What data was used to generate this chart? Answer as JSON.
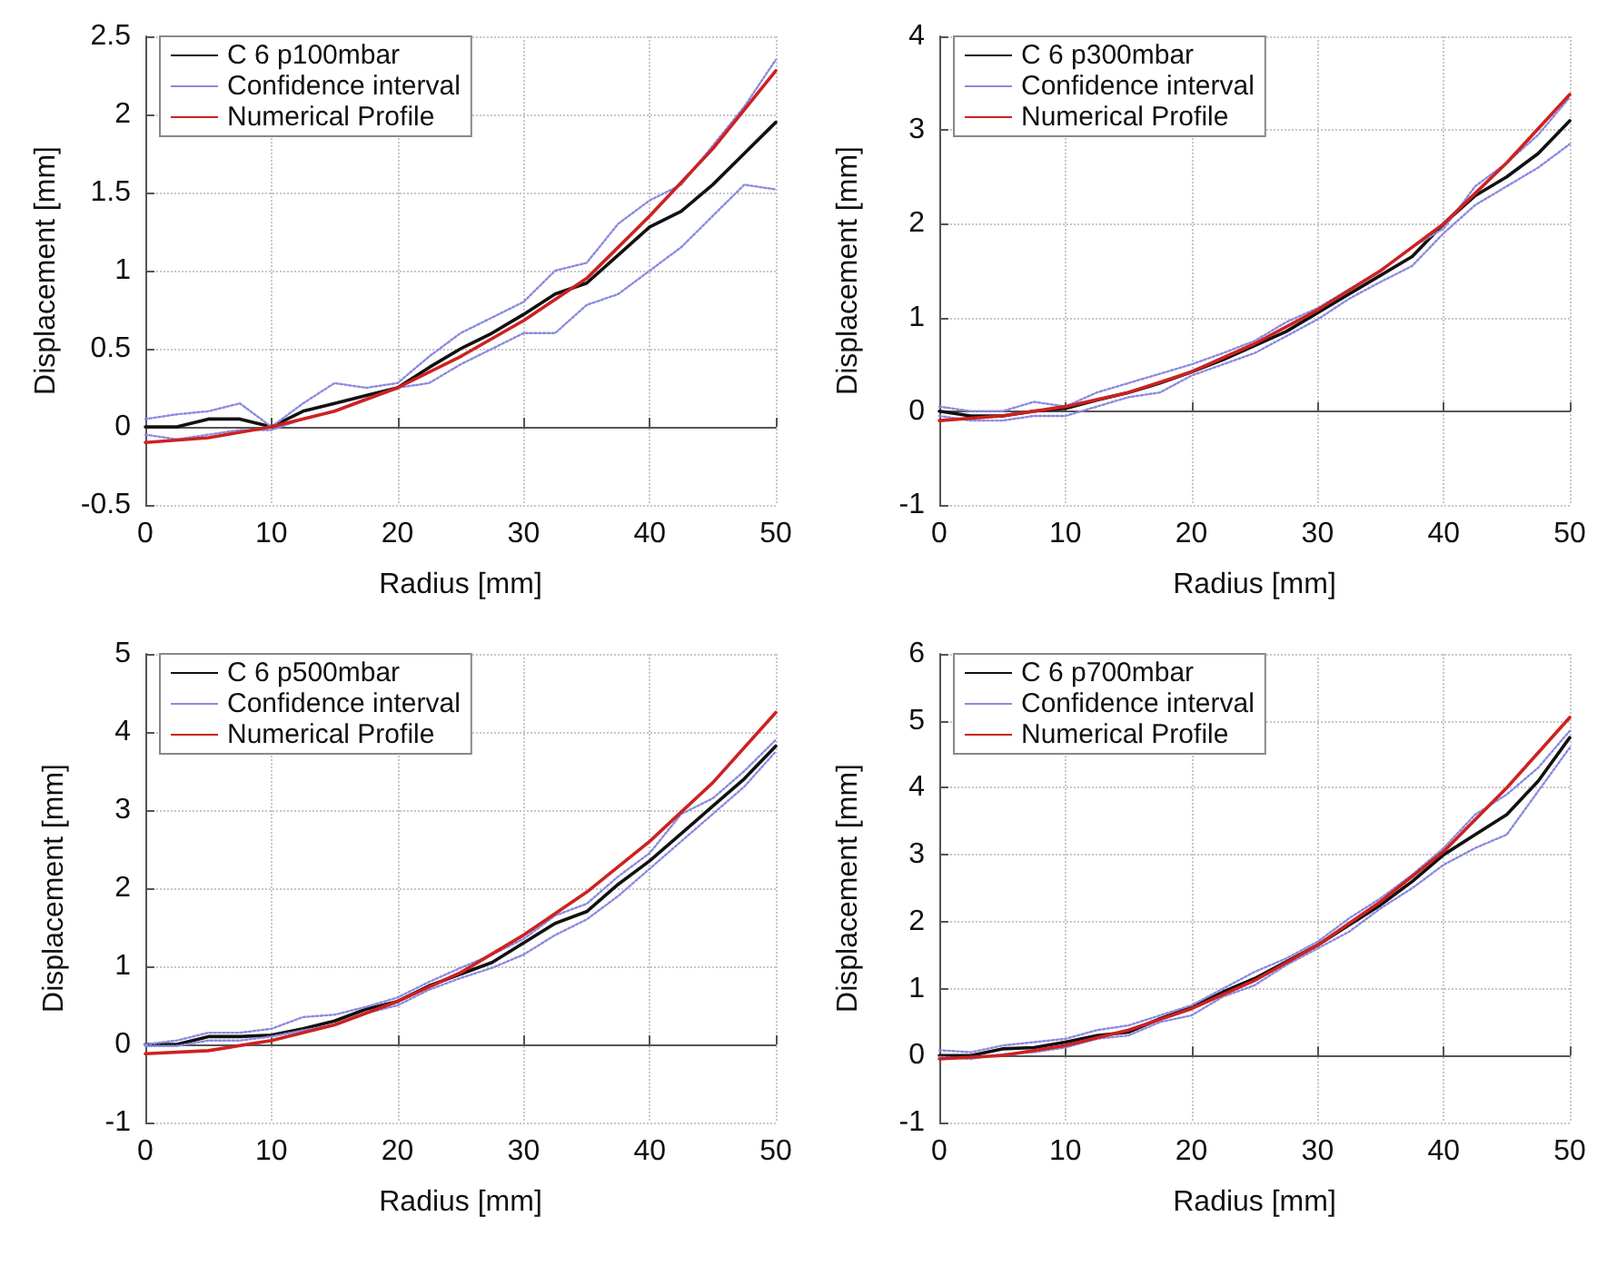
{
  "chart_data": [
    {
      "type": "line",
      "xlabel": "Radius [mm]",
      "ylabel": "Displacement [mm]",
      "xlim": [
        0,
        50
      ],
      "xticks": [
        0,
        10,
        20,
        30,
        40,
        50
      ],
      "ylim": [
        -0.5,
        2.5
      ],
      "yticks": [
        -0.5,
        0,
        0.5,
        1,
        1.5,
        2,
        2.5
      ],
      "grid": true,
      "legend": "top left",
      "marker": "none",
      "x": [
        0,
        2.5,
        5,
        7.5,
        10,
        12.5,
        15,
        17.5,
        20,
        22.5,
        25,
        27.5,
        30,
        32.5,
        35,
        37.5,
        40,
        42.5,
        45,
        47.5,
        50
      ],
      "series": [
        {
          "name": "C 6 p100mbar",
          "color": "#111111",
          "line_style": "solid",
          "values": [
            0.0,
            0.0,
            0.05,
            0.05,
            0.0,
            0.1,
            0.15,
            0.2,
            0.25,
            0.38,
            0.5,
            0.6,
            0.72,
            0.85,
            0.92,
            1.1,
            1.28,
            1.38,
            1.55,
            1.75,
            1.95
          ]
        },
        {
          "name": "Confidence interval",
          "color": "#8a8ae0",
          "line_style": "dotted",
          "values": [
            0.05,
            0.08,
            0.1,
            0.15,
            0.0,
            0.15,
            0.28,
            0.25,
            0.28,
            0.45,
            0.6,
            0.7,
            0.8,
            1.0,
            1.05,
            1.3,
            1.45,
            1.55,
            1.8,
            2.05,
            2.35
          ]
        },
        {
          "color": "#8a8ae0",
          "line_style": "dotted",
          "values": [
            -0.05,
            -0.08,
            -0.05,
            -0.02,
            -0.02,
            0.05,
            0.1,
            0.18,
            0.25,
            0.28,
            0.4,
            0.5,
            0.6,
            0.6,
            0.78,
            0.85,
            1.0,
            1.15,
            1.35,
            1.55,
            1.52
          ]
        },
        {
          "name": "Numerical Profile",
          "color": "#cc2222",
          "line_style": "solid",
          "x": [
            0,
            5,
            10,
            15,
            20,
            25,
            30,
            35,
            40,
            45,
            50
          ],
          "values": [
            -0.1,
            -0.07,
            0.0,
            0.1,
            0.25,
            0.45,
            0.68,
            0.95,
            1.35,
            1.78,
            2.28
          ]
        }
      ]
    },
    {
      "type": "line",
      "xlabel": "Radius [mm]",
      "ylabel": "Displacement [mm]",
      "xlim": [
        0,
        50
      ],
      "xticks": [
        0,
        10,
        20,
        30,
        40,
        50
      ],
      "ylim": [
        -1,
        4
      ],
      "yticks": [
        -1,
        0,
        1,
        2,
        3,
        4
      ],
      "grid": true,
      "legend": "top left",
      "marker": "none",
      "x": [
        0,
        2.5,
        5,
        7.5,
        10,
        12.5,
        15,
        17.5,
        20,
        22.5,
        25,
        27.5,
        30,
        32.5,
        35,
        37.5,
        40,
        42.5,
        45,
        47.5,
        50
      ],
      "series": [
        {
          "name": "C 6 p300mbar",
          "color": "#111111",
          "line_style": "solid",
          "values": [
            0.0,
            -0.05,
            -0.05,
            0.0,
            0.03,
            0.12,
            0.2,
            0.3,
            0.42,
            0.55,
            0.7,
            0.85,
            1.05,
            1.25,
            1.45,
            1.65,
            2.0,
            2.3,
            2.5,
            2.75,
            3.1
          ]
        },
        {
          "name": "Confidence interval",
          "color": "#8a8ae0",
          "line_style": "dotted",
          "values": [
            0.05,
            0.0,
            0.0,
            0.1,
            0.05,
            0.2,
            0.3,
            0.4,
            0.5,
            0.62,
            0.75,
            0.95,
            1.1,
            1.3,
            1.5,
            1.75,
            1.95,
            2.4,
            2.65,
            2.95,
            3.35
          ]
        },
        {
          "color": "#8a8ae0",
          "line_style": "dotted",
          "values": [
            -0.05,
            -0.1,
            -0.1,
            -0.05,
            -0.05,
            0.05,
            0.15,
            0.2,
            0.38,
            0.5,
            0.62,
            0.8,
            0.98,
            1.2,
            1.38,
            1.55,
            1.9,
            2.2,
            2.4,
            2.6,
            2.85
          ]
        },
        {
          "name": "Numerical Profile",
          "color": "#cc2222",
          "line_style": "solid",
          "x": [
            0,
            5,
            10,
            15,
            20,
            25,
            30,
            35,
            40,
            45,
            50
          ],
          "values": [
            -0.1,
            -0.05,
            0.05,
            0.2,
            0.42,
            0.72,
            1.08,
            1.5,
            2.0,
            2.65,
            3.38
          ]
        }
      ]
    },
    {
      "type": "line",
      "xlabel": "Radius [mm]",
      "ylabel": "Displacement [mm]",
      "xlim": [
        0,
        50
      ],
      "xticks": [
        0,
        10,
        20,
        30,
        40,
        50
      ],
      "ylim": [
        -1,
        5
      ],
      "yticks": [
        -1,
        0,
        1,
        2,
        3,
        4,
        5
      ],
      "grid": true,
      "legend": "top left",
      "marker": "none",
      "x": [
        0,
        2.5,
        5,
        7.5,
        10,
        12.5,
        15,
        17.5,
        20,
        22.5,
        25,
        27.5,
        30,
        32.5,
        35,
        37.5,
        40,
        42.5,
        45,
        47.5,
        50
      ],
      "series": [
        {
          "name": "C 6 p500mbar",
          "color": "#111111",
          "line_style": "solid",
          "values": [
            0.0,
            0.0,
            0.1,
            0.1,
            0.12,
            0.2,
            0.3,
            0.45,
            0.55,
            0.75,
            0.9,
            1.05,
            1.3,
            1.55,
            1.7,
            2.05,
            2.35,
            2.7,
            3.05,
            3.4,
            3.82
          ]
        },
        {
          "name": "Confidence interval",
          "color": "#8a8ae0",
          "line_style": "dotted",
          "values": [
            0.0,
            0.05,
            0.15,
            0.15,
            0.2,
            0.35,
            0.38,
            0.48,
            0.6,
            0.8,
            0.98,
            1.15,
            1.35,
            1.65,
            1.8,
            2.15,
            2.45,
            2.95,
            3.15,
            3.5,
            3.9
          ]
        },
        {
          "color": "#8a8ae0",
          "line_style": "dotted",
          "values": [
            -0.02,
            -0.02,
            0.05,
            0.05,
            0.1,
            0.18,
            0.25,
            0.4,
            0.5,
            0.7,
            0.85,
            0.98,
            1.15,
            1.4,
            1.6,
            1.9,
            2.25,
            2.6,
            2.95,
            3.3,
            3.75
          ]
        },
        {
          "name": "Numerical Profile",
          "color": "#cc2222",
          "line_style": "solid",
          "x": [
            0,
            5,
            10,
            15,
            20,
            25,
            30,
            35,
            40,
            45,
            50
          ],
          "values": [
            -0.12,
            -0.08,
            0.05,
            0.25,
            0.55,
            0.92,
            1.4,
            1.95,
            2.6,
            3.35,
            4.25
          ]
        }
      ]
    },
    {
      "type": "line",
      "xlabel": "Radius [mm]",
      "ylabel": "Displacement [mm]",
      "xlim": [
        0,
        50
      ],
      "xticks": [
        0,
        10,
        20,
        30,
        40,
        50
      ],
      "ylim": [
        -1,
        6
      ],
      "yticks": [
        -1,
        0,
        1,
        2,
        3,
        4,
        5,
        6
      ],
      "grid": true,
      "legend": "top left",
      "marker": "none",
      "x": [
        0,
        2.5,
        5,
        7.5,
        10,
        12.5,
        15,
        17.5,
        20,
        22.5,
        25,
        27.5,
        30,
        32.5,
        35,
        37.5,
        40,
        42.5,
        45,
        47.5,
        50
      ],
      "series": [
        {
          "name": "C 6 p700mbar",
          "color": "#111111",
          "line_style": "solid",
          "values": [
            0.0,
            0.0,
            0.1,
            0.12,
            0.2,
            0.3,
            0.35,
            0.55,
            0.72,
            0.95,
            1.15,
            1.4,
            1.65,
            1.95,
            2.25,
            2.6,
            3.0,
            3.3,
            3.6,
            4.1,
            4.75
          ]
        },
        {
          "name": "Confidence interval",
          "color": "#8a8ae0",
          "line_style": "dotted",
          "values": [
            0.08,
            0.05,
            0.15,
            0.2,
            0.25,
            0.38,
            0.45,
            0.6,
            0.75,
            1.0,
            1.25,
            1.45,
            1.7,
            2.05,
            2.35,
            2.7,
            3.1,
            3.6,
            3.9,
            4.3,
            4.85
          ]
        },
        {
          "color": "#8a8ae0",
          "line_style": "dotted",
          "values": [
            -0.02,
            -0.05,
            0.02,
            0.05,
            0.12,
            0.25,
            0.3,
            0.5,
            0.6,
            0.88,
            1.05,
            1.35,
            1.6,
            1.85,
            2.2,
            2.5,
            2.85,
            3.1,
            3.3,
            3.95,
            4.6
          ]
        },
        {
          "name": "Numerical Profile",
          "color": "#cc2222",
          "line_style": "solid",
          "x": [
            0,
            5,
            10,
            15,
            20,
            25,
            30,
            35,
            40,
            45,
            50
          ],
          "values": [
            -0.05,
            0.0,
            0.15,
            0.38,
            0.7,
            1.12,
            1.65,
            2.3,
            3.05,
            4.0,
            5.05
          ]
        }
      ]
    }
  ]
}
